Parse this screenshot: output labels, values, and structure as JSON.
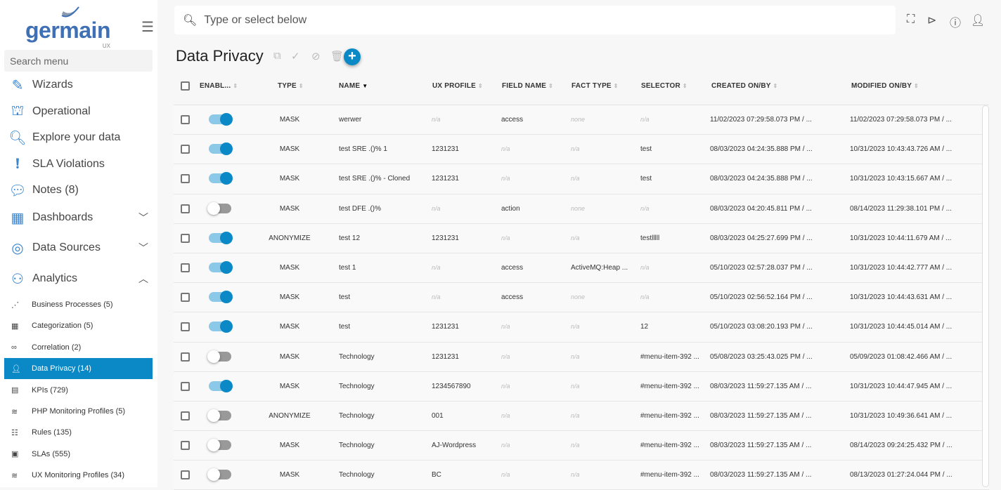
{
  "brand": {
    "name": "germain",
    "sub": "UX"
  },
  "sidebar": {
    "search_placeholder": "Search menu",
    "items": [
      {
        "label": "Wizards",
        "icon": "pencil-icon"
      },
      {
        "label": "Operational",
        "icon": "sitemap-icon"
      },
      {
        "label": "Explore your data",
        "icon": "search-icon"
      },
      {
        "label": "SLA Violations",
        "icon": "exclamation-circle-icon"
      },
      {
        "label": "Notes (8)",
        "icon": "comment-icon"
      },
      {
        "label": "Dashboards",
        "icon": "monitor-chart-icon",
        "expanded": false
      },
      {
        "label": "Data Sources",
        "icon": "database-icon",
        "expanded": false
      },
      {
        "label": "Analytics",
        "icon": "analytics-icon",
        "expanded": true
      }
    ],
    "subitems": [
      {
        "label": "Business Processes (5)",
        "icon": "process-icon"
      },
      {
        "label": "Categorization (5)",
        "icon": "grid-icon"
      },
      {
        "label": "Correlation (2)",
        "icon": "link-icon"
      },
      {
        "label": "Data Privacy (14)",
        "icon": "user-shield-icon",
        "active": true
      },
      {
        "label": "KPIs (729)",
        "icon": "list-icon"
      },
      {
        "label": "PHP Monitoring Profiles (5)",
        "icon": "sliders-icon"
      },
      {
        "label": "Rules (135)",
        "icon": "checklist-icon"
      },
      {
        "label": "SLAs (555)",
        "icon": "clipboard-icon"
      },
      {
        "label": "UX Monitoring Profiles (34)",
        "icon": "sliders-icon"
      }
    ]
  },
  "topbar": {
    "placeholder": "Type or select below"
  },
  "page": {
    "title": "Data Privacy"
  },
  "accent": "#0a89c6",
  "columns": [
    "ENABL...",
    "TYPE",
    "NAME",
    "UX PROFILE",
    "FIELD NAME",
    "FACT TYPE",
    "SELECTOR",
    "CREATED ON/BY",
    "MODIFIED ON/BY"
  ],
  "sorted_column": "NAME",
  "rows": [
    {
      "enabled": true,
      "type": "MASK",
      "name": "werwer",
      "ux": "n/a",
      "field": "access",
      "fact": "none",
      "selector": "n/a",
      "created": "11/02/2023 07:29:58.073 PM / ...",
      "modified": "11/02/2023 07:29:58.073 PM / ..."
    },
    {
      "enabled": true,
      "type": "MASK",
      "name": "test SRE .()% 1",
      "ux": "1231231",
      "field": "n/a",
      "fact": "n/a",
      "selector": "test",
      "created": "08/03/2023 04:24:35.888 PM / ...",
      "modified": "10/31/2023 10:43:43.726 AM / ..."
    },
    {
      "enabled": true,
      "type": "MASK",
      "name": "test SRE .()% - Cloned",
      "ux": "1231231",
      "field": "n/a",
      "fact": "n/a",
      "selector": "test",
      "created": "08/03/2023 04:24:35.888 PM / ...",
      "modified": "10/31/2023 10:43:15.667 AM / ..."
    },
    {
      "enabled": false,
      "type": "MASK",
      "name": "test DFE .()%",
      "ux": "n/a",
      "field": "action",
      "fact": "none",
      "selector": "n/a",
      "created": "08/03/2023 04:20:45.811 PM / ...",
      "modified": "08/14/2023 11:29:38.101 PM / ..."
    },
    {
      "enabled": true,
      "type": "ANONYMIZE",
      "name": "test 12",
      "ux": "1231231",
      "field": "n/a",
      "fact": "n/a",
      "selector": "testlllll",
      "created": "08/03/2023 04:25:27.699 PM / ...",
      "modified": "10/31/2023 10:44:11.679 AM / ..."
    },
    {
      "enabled": true,
      "type": "MASK",
      "name": "test 1",
      "ux": "n/a",
      "field": "access",
      "fact": "ActiveMQ:Heap ...",
      "selector": "n/a",
      "created": "05/10/2023 02:57:28.037 PM / ...",
      "modified": "10/31/2023 10:44:42.777 AM / ..."
    },
    {
      "enabled": true,
      "type": "MASK",
      "name": "test",
      "ux": "n/a",
      "field": "access",
      "fact": "none",
      "selector": "n/a",
      "created": "05/10/2023 02:56:52.164 PM / ...",
      "modified": "10/31/2023 10:44:43.631 AM / ..."
    },
    {
      "enabled": true,
      "type": "MASK",
      "name": "test",
      "ux": "1231231",
      "field": "n/a",
      "fact": "n/a",
      "selector": "12",
      "created": "05/10/2023 03:08:20.193 PM / ...",
      "modified": "10/31/2023 10:44:45.014 AM / ..."
    },
    {
      "enabled": false,
      "type": "MASK",
      "name": "Technology",
      "ux": "1231231",
      "field": "n/a",
      "fact": "n/a",
      "selector": "#menu-item-392 ...",
      "created": "05/08/2023 03:25:43.025 PM / ...",
      "modified": "05/09/2023 01:08:42.466 AM / ..."
    },
    {
      "enabled": true,
      "type": "MASK",
      "name": "Technology",
      "ux": "1234567890",
      "field": "n/a",
      "fact": "n/a",
      "selector": "#menu-item-392 ...",
      "created": "08/03/2023 11:59:27.135 AM / ...",
      "modified": "10/31/2023 10:44:47.945 AM / ..."
    },
    {
      "enabled": false,
      "type": "ANONYMIZE",
      "name": "Technology",
      "ux": "001",
      "field": "n/a",
      "fact": "n/a",
      "selector": "#menu-item-392 ...",
      "created": "08/03/2023 11:59:27.135 AM / ...",
      "modified": "10/31/2023 10:49:36.641 AM / ..."
    },
    {
      "enabled": false,
      "type": "MASK",
      "name": "Technology",
      "ux": "AJ-Wordpress",
      "field": "n/a",
      "fact": "n/a",
      "selector": "#menu-item-392 ...",
      "created": "08/03/2023 11:59:27.135 AM / ...",
      "modified": "08/14/2023 09:24:25.432 PM / ..."
    },
    {
      "enabled": false,
      "type": "MASK",
      "name": "Technology",
      "ux": "BC",
      "field": "n/a",
      "fact": "n/a",
      "selector": "#menu-item-392 ...",
      "created": "08/03/2023 11:59:27.135 AM / ...",
      "modified": "08/13/2023 01:27:24.044 PM / ..."
    }
  ]
}
